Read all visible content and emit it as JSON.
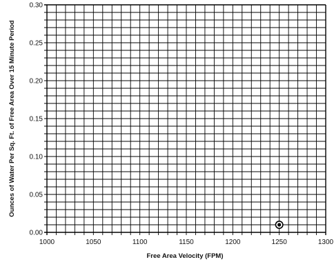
{
  "chart_data": {
    "type": "scatter",
    "title": "",
    "xlabel": "Free Area Velocity (FPM)",
    "ylabel": "Ounces of Water Per Sq. Ft. of Free Area Over 15 Minute Period",
    "xlim": [
      1000,
      1300
    ],
    "ylim": [
      0.0,
      0.3
    ],
    "x_ticks": [
      "1000",
      "1050",
      "1100",
      "1150",
      "1200",
      "1250",
      "1300"
    ],
    "y_ticks": [
      "0.00",
      "0.05",
      "0.10",
      "0.15",
      "0.20",
      "0.25",
      "0.30"
    ],
    "x_minor_step": 10,
    "y_minor_step": 0.01,
    "grid": true,
    "legend": "none",
    "series": [
      {
        "x": [
          1250
        ],
        "y": [
          0.01
        ]
      }
    ],
    "colors": {
      "grid": "#000000",
      "marker": "#000000"
    }
  }
}
